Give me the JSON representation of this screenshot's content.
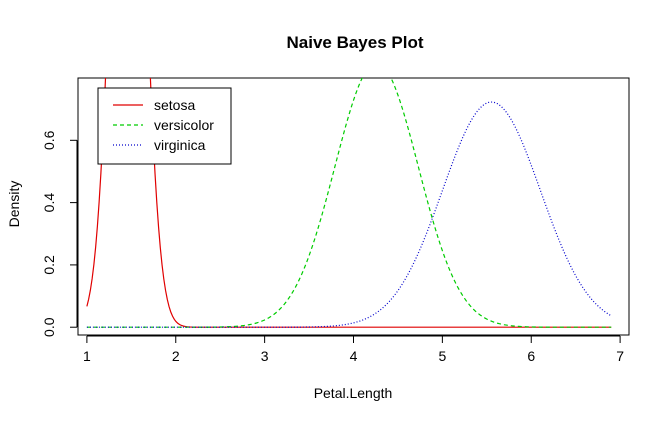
{
  "chart_data": {
    "type": "line",
    "title": "Naive Bayes Plot",
    "xlabel": "Petal.Length",
    "ylabel": "Density",
    "xlim": [
      0.9,
      7.1
    ],
    "ylim": [
      -0.025,
      0.8
    ],
    "x_ticks": [
      "1",
      "2",
      "3",
      "4",
      "5",
      "6",
      "7"
    ],
    "y_ticks": [
      "0.0",
      "0.2",
      "0.4",
      "0.6"
    ],
    "x_tick_values": [
      1,
      2,
      3,
      4,
      5,
      6,
      7
    ],
    "y_tick_values": [
      0,
      0.2,
      0.4,
      0.6
    ],
    "grid": false,
    "legend_position": "top-left",
    "x_range": [
      1,
      6.9
    ],
    "series": [
      {
        "name": "setosa",
        "color": "#e00000",
        "dash": "solid",
        "mean": 1.462,
        "sd": 0.1737
      },
      {
        "name": "versicolor",
        "color": "#00cc00",
        "dash": "dashed",
        "mean": 4.26,
        "sd": 0.4699
      },
      {
        "name": "virginica",
        "color": "#0000cc",
        "dash": "dotted",
        "mean": 5.552,
        "sd": 0.5519
      }
    ]
  }
}
